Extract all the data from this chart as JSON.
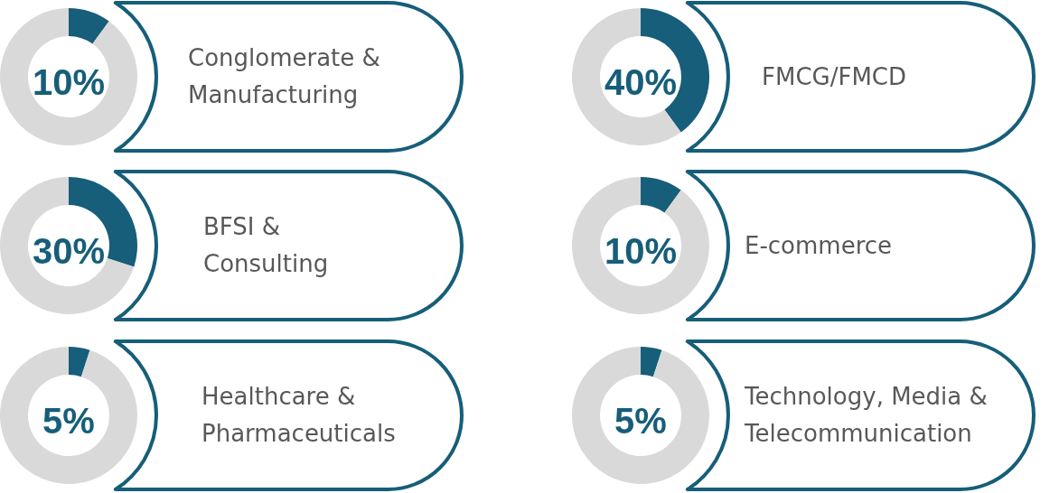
{
  "chart_data": [
    {
      "type": "donut",
      "title": "Conglomerate & Manufacturing",
      "categories": [
        null,
        null
      ],
      "values": [
        10,
        90
      ],
      "colors": [
        "#165e79",
        "#d9d9d9"
      ],
      "annotations": [
        "10%"
      ]
    },
    {
      "type": "donut",
      "title": "FMCG/FMCD",
      "categories": [
        null,
        null
      ],
      "values": [
        40,
        60
      ],
      "colors": [
        "#165e79",
        "#d9d9d9"
      ],
      "annotations": [
        "40%"
      ]
    },
    {
      "type": "donut",
      "title": "BFSI & Consulting",
      "categories": [
        null,
        null
      ],
      "values": [
        30,
        70
      ],
      "colors": [
        "#165e79",
        "#d9d9d9"
      ],
      "annotations": [
        "30%"
      ]
    },
    {
      "type": "donut",
      "title": "E-commerce",
      "categories": [
        null,
        null
      ],
      "values": [
        10,
        90
      ],
      "colors": [
        "#165e79",
        "#d9d9d9"
      ],
      "annotations": [
        "10%"
      ]
    },
    {
      "type": "donut",
      "title": "Healthcare & Pharmaceuticals",
      "categories": [
        null,
        null
      ],
      "values": [
        5,
        95
      ],
      "colors": [
        "#165e79",
        "#d9d9d9"
      ],
      "annotations": [
        "5%"
      ]
    },
    {
      "type": "donut",
      "title": "Technology, Media & Telecommunication",
      "categories": [
        null,
        null
      ],
      "values": [
        5,
        95
      ],
      "colors": [
        "#165e79",
        "#d9d9d9"
      ],
      "annotations": [
        "5%"
      ]
    }
  ]
}
